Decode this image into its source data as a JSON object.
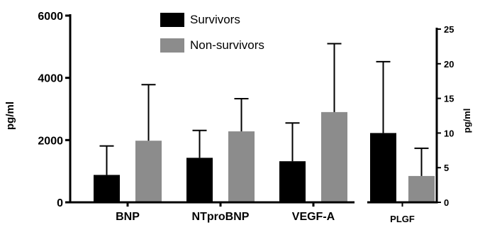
{
  "chart_data": [
    {
      "type": "bar",
      "categories": [
        "BNP",
        "NTproBNP",
        "VEGF-A"
      ],
      "ylabel": "pg/ml",
      "ylim": [
        0,
        6000
      ],
      "yticks": [
        0,
        2000,
        4000,
        6000
      ],
      "error_bars": true,
      "legend_position": "top-center",
      "series": [
        {
          "name": "Survivors",
          "color": "#000000",
          "values": [
            880,
            1430,
            1320
          ],
          "errors": [
            930,
            880,
            1230
          ]
        },
        {
          "name": "Non-survivors",
          "color": "#8c8c8c",
          "values": [
            1980,
            2280,
            2900
          ],
          "errors": [
            1800,
            1050,
            2200
          ]
        }
      ]
    },
    {
      "type": "bar",
      "categories": [
        "PLGF"
      ],
      "ylabel": "pg/ml",
      "ylim": [
        0,
        25
      ],
      "yticks": [
        0,
        5,
        10,
        15,
        20,
        25
      ],
      "axis_side": "right",
      "error_bars": true,
      "series": [
        {
          "name": "Survivors",
          "color": "#000000",
          "values": [
            10
          ],
          "errors": [
            10.3
          ]
        },
        {
          "name": "Non-survivors",
          "color": "#8c8c8c",
          "values": [
            3.8
          ],
          "errors": [
            4
          ]
        }
      ]
    }
  ]
}
